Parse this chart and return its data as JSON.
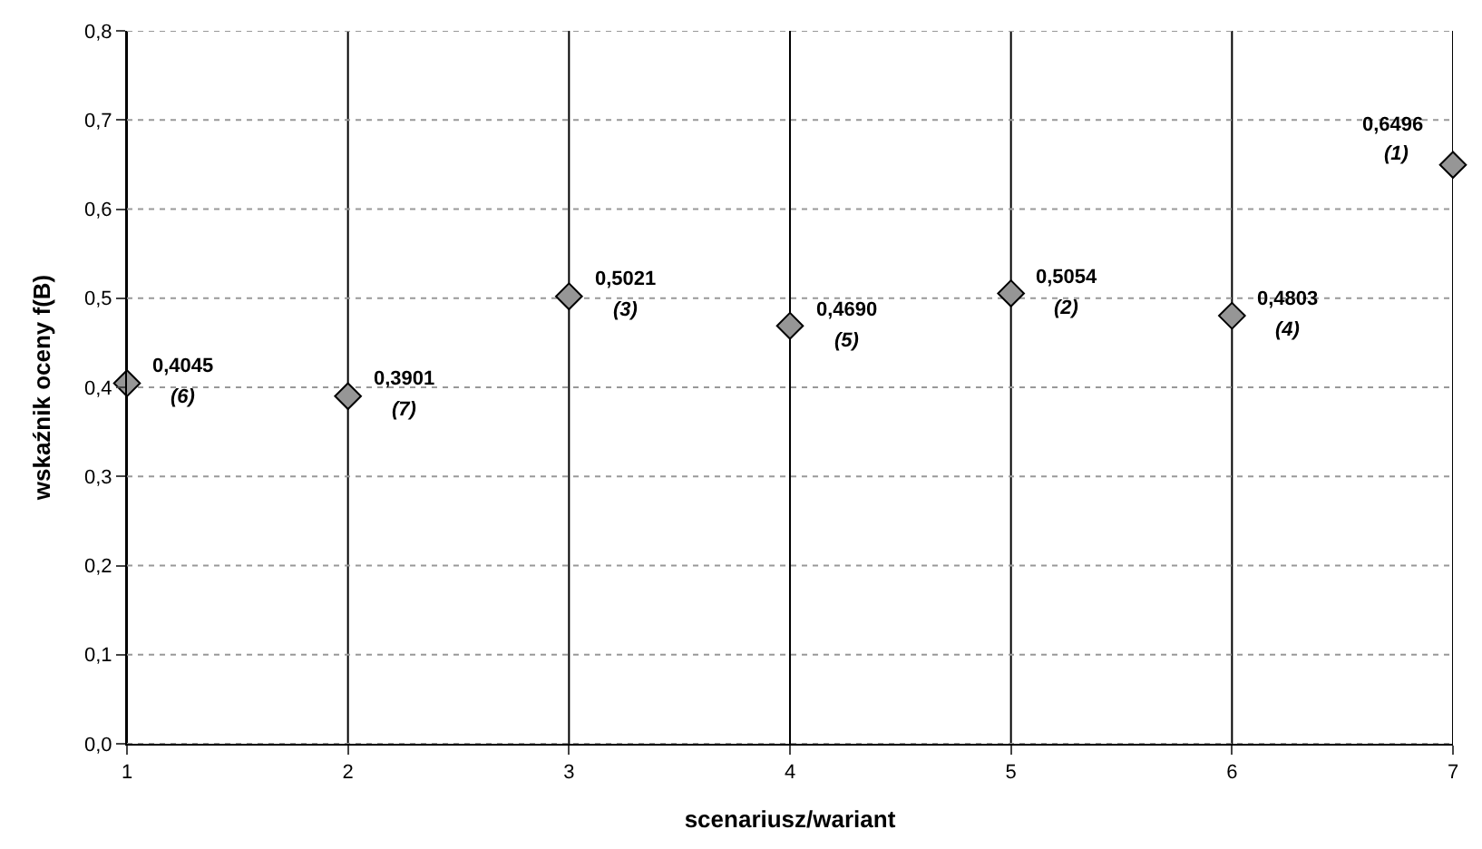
{
  "chart_data": {
    "type": "scatter",
    "xlabel": "scenariusz/wariant",
    "ylabel": "wskaźnik oceny f(B)",
    "x": [
      1,
      2,
      3,
      4,
      5,
      6,
      7
    ],
    "series": [
      {
        "color": "#969696",
        "values": [
          0.4045,
          0.3901,
          0.5021,
          0.469,
          0.5054,
          0.4803,
          0.6496
        ],
        "value_labels": [
          "0,4045",
          "0,3901",
          "0,5021",
          "0,4690",
          "0,5054",
          "0,4803",
          "0,6496"
        ]
      }
    ],
    "annotations": [
      {
        "text": "(6)",
        "x": 1,
        "y": 0.4045
      },
      {
        "text": "(7)",
        "x": 2,
        "y": 0.3901
      },
      {
        "text": "(3)",
        "x": 3,
        "y": 0.5021
      },
      {
        "text": "(5)",
        "x": 4,
        "y": 0.469
      },
      {
        "text": "(2)",
        "x": 5,
        "y": 0.5054
      },
      {
        "text": "(4)",
        "x": 6,
        "y": 0.4803
      },
      {
        "text": "(1)",
        "x": 7,
        "y": 0.6496
      }
    ],
    "xlim": [
      1,
      7
    ],
    "xticks": [
      1,
      2,
      3,
      4,
      5,
      6,
      7
    ],
    "ylim": [
      0,
      0.8
    ],
    "yticks": [
      {
        "value": 0,
        "label": "0,0"
      },
      {
        "value": 0.1,
        "label": "0,1"
      },
      {
        "value": 0.2,
        "label": "0,2"
      },
      {
        "value": 0.3,
        "label": "0,3"
      },
      {
        "value": 0.4,
        "label": "0,4"
      },
      {
        "value": 0.5,
        "label": "0,5"
      },
      {
        "value": 0.6,
        "label": "0,6"
      },
      {
        "value": 0.7,
        "label": "0,7"
      },
      {
        "value": 0.8,
        "label": "0,8"
      }
    ],
    "grid": true,
    "marker": "diamond"
  }
}
